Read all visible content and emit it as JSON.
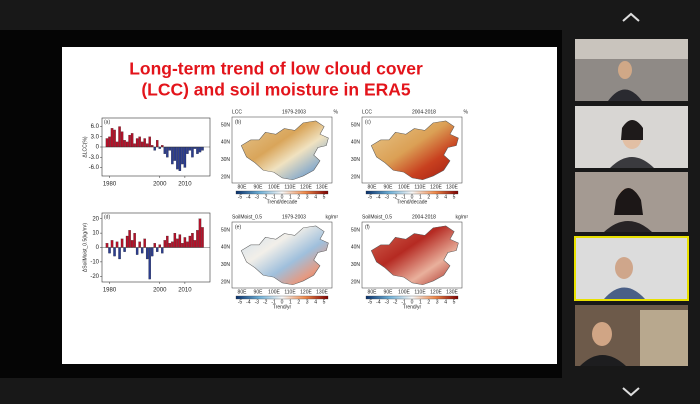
{
  "slide": {
    "title_lines": [
      "Long-term trend of low cloud cover",
      "(LCC) and soil moisture in ERA5"
    ]
  },
  "chart_data": [
    {
      "type": "bar",
      "panel_label": "(a)",
      "ylabel": "ΔLCC(%)",
      "color_positive": "#b3122a",
      "color_negative": "#2c3d8e",
      "x": [
        1979,
        1980,
        1981,
        1982,
        1983,
        1984,
        1985,
        1986,
        1987,
        1988,
        1989,
        1990,
        1991,
        1992,
        1993,
        1994,
        1995,
        1996,
        1997,
        1998,
        1999,
        2000,
        2001,
        2002,
        2003,
        2004,
        2005,
        2006,
        2007,
        2008,
        2009,
        2010,
        2011,
        2012,
        2013,
        2014,
        2015,
        2016,
        2017
      ],
      "values": [
        2.5,
        3,
        5.5,
        5,
        1.5,
        6,
        4.5,
        2,
        1.5,
        3.5,
        4,
        1,
        2.5,
        3,
        1.5,
        2.5,
        1,
        3,
        0.5,
        -1,
        2,
        -0.5,
        0.5,
        -2,
        -3,
        -1,
        -5,
        -4,
        -6.5,
        -7,
        -5,
        -6,
        -2,
        -1,
        -3,
        -0.5,
        -2,
        -1.5,
        -1
      ],
      "xlim": [
        1977,
        2020
      ],
      "xticks": [
        1980,
        2000,
        2010
      ],
      "ylim": [
        -8.5,
        8.5
      ],
      "yticks": [
        {
          "value": 6,
          "label": "6.0"
        },
        {
          "value": 3,
          "label": "3.0"
        },
        0,
        {
          "value": -3,
          "label": "-3.0"
        },
        {
          "value": -6,
          "label": "-6.0"
        }
      ]
    },
    {
      "type": "bar",
      "panel_label": "(d)",
      "ylabel": "ΔSoilMoist_0.5(kg/m²)",
      "color_positive": "#b3122a",
      "color_negative": "#2c3d8e",
      "x": [
        1979,
        1980,
        1981,
        1982,
        1983,
        1984,
        1985,
        1986,
        1987,
        1988,
        1989,
        1990,
        1991,
        1992,
        1993,
        1994,
        1995,
        1996,
        1997,
        1998,
        1999,
        2000,
        2001,
        2002,
        2003,
        2004,
        2005,
        2006,
        2007,
        2008,
        2009,
        2010,
        2011,
        2012,
        2013,
        2014,
        2015,
        2016,
        2017
      ],
      "values": [
        3,
        -4,
        5,
        -6,
        4,
        -8,
        6,
        -3,
        8,
        12,
        5,
        10,
        -5,
        4,
        -4,
        6,
        -8,
        -22,
        -6,
        3,
        -3,
        2,
        -4,
        5,
        8,
        3,
        4,
        10,
        6,
        9,
        3,
        7,
        4,
        8,
        10,
        5,
        12,
        20,
        14
      ],
      "xlim": [
        1977,
        2020
      ],
      "xticks": [
        1980,
        2000,
        2010
      ],
      "ylim": [
        -24,
        24
      ],
      "yticks": [
        20,
        10,
        0,
        -10,
        -20
      ]
    }
  ],
  "maps": [
    {
      "label": "(b)",
      "variable": "LCC",
      "period": "1979-2003",
      "unit": "%",
      "colorbar_label": "Trend/decade"
    },
    {
      "label": "(c)",
      "variable": "LCC",
      "period": "2004-2018",
      "unit": "%",
      "colorbar_label": "Trend/decade"
    },
    {
      "label": "(e)",
      "variable": "SoilMoist_0.5",
      "period": "1979-2003",
      "unit": "kg/m²",
      "colorbar_label": "Trend/yr"
    },
    {
      "label": "(f)",
      "variable": "SoilMoist_0.5",
      "period": "2004-2018",
      "unit": "kg/m²",
      "colorbar_label": "Trend/yr"
    }
  ],
  "map_axes": {
    "lat_ticks": [
      "50N",
      "40N",
      "30N",
      "20N"
    ],
    "lon_ticks": [
      "80E",
      "90E",
      "100E",
      "110E",
      "120E",
      "130E"
    ],
    "colorbar_ticks": [
      -5,
      -4,
      -3,
      -2,
      -1,
      0,
      1,
      2,
      3,
      4,
      5
    ]
  }
}
